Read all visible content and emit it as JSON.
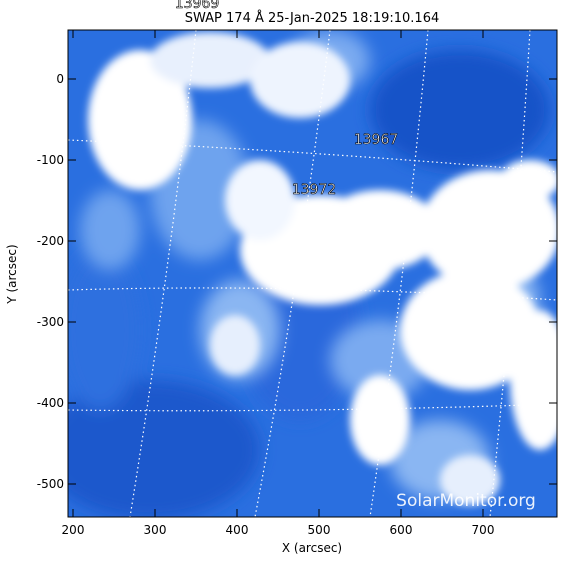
{
  "title": "SWAP 174 Å 25-Jan-2025 18:19:10.164",
  "xlabel": "X (arcsec)",
  "ylabel": "Y (arcsec)",
  "x_ticks": [
    "200",
    "300",
    "400",
    "500",
    "600",
    "700"
  ],
  "y_ticks": [
    "0",
    "-100",
    "-200",
    "-300",
    "-400",
    "-500"
  ],
  "active_regions": [
    "13969",
    "13967",
    "13972"
  ],
  "watermark": "SolarMonitor.org",
  "colors": {
    "dark_blue": "#1a5fd6",
    "mid_blue": "#4a8ae8",
    "light": "#cfe0fb",
    "white": "#ffffff"
  }
}
